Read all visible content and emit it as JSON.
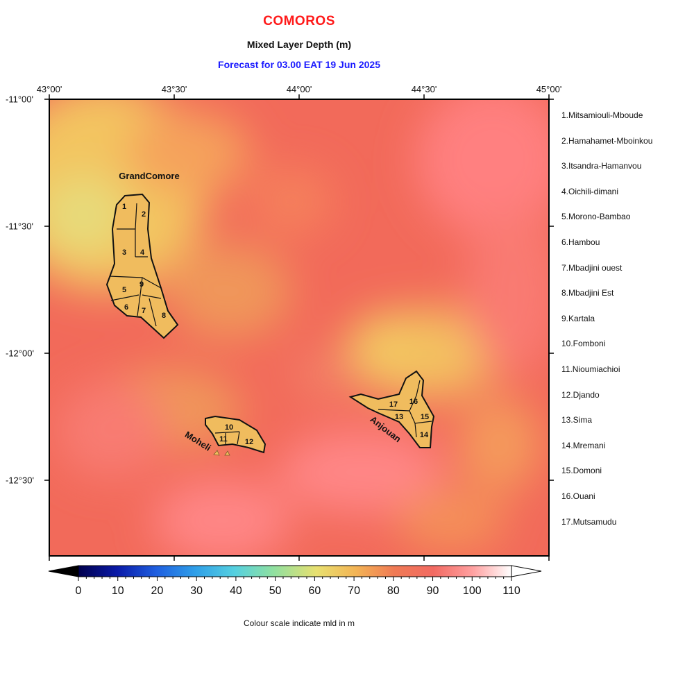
{
  "header": {
    "title": "COMOROS",
    "subtitle": "Mixed Layer Depth (m)",
    "forecast": "Forecast for  03.00 EAT 19 Jun 2025"
  },
  "axes": {
    "longitude_labels": [
      "43°00'",
      "43°30'",
      "44°00'",
      "44°30'",
      "45°00'"
    ],
    "latitude_labels": [
      "-11°00'",
      "-11°30'",
      "-12°00'",
      "-12°30'"
    ]
  },
  "islands": {
    "grand_comore": "GrandComore",
    "moheli": "Moheli",
    "anjouan": "Anjouan"
  },
  "regions": [
    "1.Mitsamiouli-Mboude",
    "2.Hamahamet-Mboinkou",
    "3.Itsandra-Hamanvou",
    "4.Oichili-dimani",
    "5.Morono-Bambao",
    "6.Hambou",
    "7.Mbadjini ouest",
    "8.Mbadjini Est",
    "9.Kartala",
    "10.Fomboni",
    "11.Nioumiachioi",
    "12.Djando",
    "13.Sima",
    "14.Mremani",
    "15.Domoni",
    "16.Ouani",
    "17.Mutsamudu"
  ],
  "region_numbers": [
    "1",
    "2",
    "3",
    "4",
    "5",
    "6",
    "7",
    "8",
    "9",
    "10",
    "11",
    "12",
    "13",
    "14",
    "15",
    "16",
    "17"
  ],
  "colorbar": {
    "labels": [
      "0",
      "10",
      "20",
      "30",
      "40",
      "50",
      "60",
      "70",
      "80",
      "90",
      "100",
      "110"
    ],
    "min": 0,
    "max": 110,
    "caption": "Colour scale indicate mld in m"
  },
  "colors": {
    "title": "#ff1a1a",
    "forecast": "#1a1aff",
    "sea_base": "#f26a5a",
    "land": "#f0bc5e"
  }
}
